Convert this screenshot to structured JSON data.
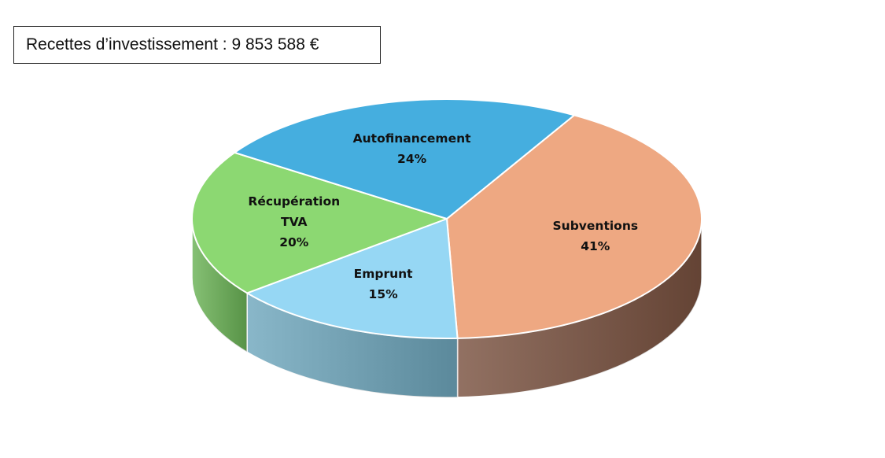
{
  "title": "Recettes d’investissement : 9 853 588 €",
  "chart_data": {
    "type": "pie",
    "three_d": true,
    "slices": [
      {
        "label_lines": [
          "Subventions"
        ],
        "value": 41,
        "value_label": "41%",
        "top_color": "#EEA882",
        "side_color": "#7A5240"
      },
      {
        "label_lines": [
          "Emprunt"
        ],
        "value": 15,
        "value_label": "15%",
        "top_color": "#96D7F4",
        "side_color": "#6FA7BD"
      },
      {
        "label_lines": [
          "Récupération",
          "TVA"
        ],
        "value": 20,
        "value_label": "20%",
        "top_color": "#8CD872",
        "side_color": "#6BB356"
      },
      {
        "label_lines": [
          "Autofinancement"
        ],
        "value": 24,
        "value_label": "24%",
        "top_color": "#45AEDF",
        "side_color": "#2E7FA6"
      }
    ]
  }
}
